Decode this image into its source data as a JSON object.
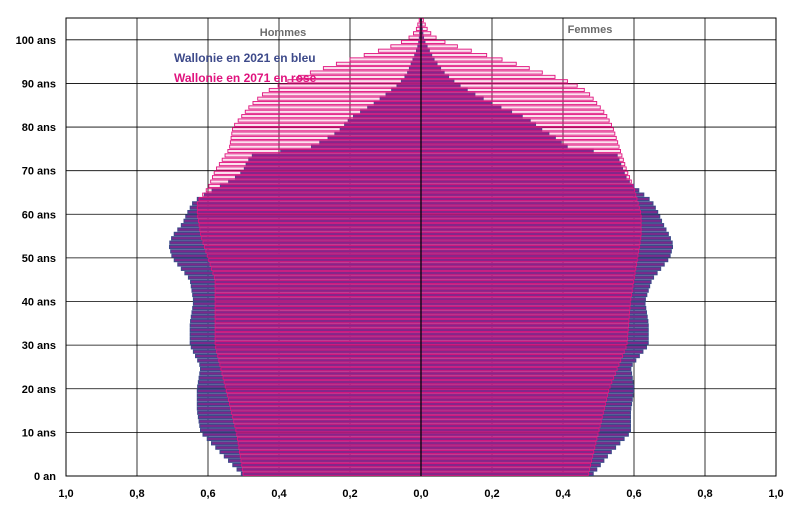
{
  "chart_data": {
    "type": "bar",
    "orientation": "horizontal-pyramid",
    "left_header": "Hommes",
    "right_header": "Femmes",
    "xlim": [
      -1.0,
      1.0
    ],
    "ylim": [
      0,
      105
    ],
    "x_ticks": [
      "1,0",
      "0,8",
      "0,6",
      "0,4",
      "0,2",
      "0,0",
      "0,2",
      "0,4",
      "0,6",
      "0,8",
      "1,0"
    ],
    "y_ticks": [
      {
        "age": 0,
        "label": "0 an"
      },
      {
        "age": 10,
        "label": "10 ans"
      },
      {
        "age": 20,
        "label": "20 ans"
      },
      {
        "age": 30,
        "label": "30 ans"
      },
      {
        "age": 40,
        "label": "40 ans"
      },
      {
        "age": 50,
        "label": "50 ans"
      },
      {
        "age": 60,
        "label": "60 ans"
      },
      {
        "age": 70,
        "label": "70 ans"
      },
      {
        "age": 80,
        "label": "80 ans"
      },
      {
        "age": 90,
        "label": "90 ans"
      },
      {
        "age": 100,
        "label": "100 ans"
      }
    ],
    "legend_position": "top-left",
    "grid": true,
    "colors": {
      "s2021": "#3d4a8a",
      "s2071": "#e0137e",
      "overlap": "#7a2a8c"
    },
    "series": [
      {
        "name": "Wallonie en 2021 en bleu",
        "men_anchors": [
          [
            0,
            0.5
          ],
          [
            5,
            0.56
          ],
          [
            10,
            0.62
          ],
          [
            15,
            0.63
          ],
          [
            20,
            0.63
          ],
          [
            25,
            0.62
          ],
          [
            30,
            0.65
          ],
          [
            35,
            0.65
          ],
          [
            40,
            0.64
          ],
          [
            45,
            0.65
          ],
          [
            50,
            0.7
          ],
          [
            53,
            0.71
          ],
          [
            55,
            0.7
          ],
          [
            58,
            0.67
          ],
          [
            60,
            0.66
          ],
          [
            63,
            0.64
          ],
          [
            65,
            0.6
          ],
          [
            68,
            0.53
          ],
          [
            70,
            0.5
          ],
          [
            72,
            0.49
          ],
          [
            74,
            0.47
          ],
          [
            75,
            0.32
          ],
          [
            78,
            0.25
          ],
          [
            80,
            0.22
          ],
          [
            82,
            0.2
          ],
          [
            85,
            0.14
          ],
          [
            88,
            0.09
          ],
          [
            90,
            0.06
          ],
          [
            92,
            0.04
          ],
          [
            95,
            0.025
          ],
          [
            98,
            0.01
          ],
          [
            100,
            0.005
          ],
          [
            102,
            0.003
          ],
          [
            105,
            0.001
          ]
        ],
        "women_anchors": [
          [
            0,
            0.48
          ],
          [
            5,
            0.53
          ],
          [
            10,
            0.59
          ],
          [
            15,
            0.59
          ],
          [
            20,
            0.6
          ],
          [
            25,
            0.59
          ],
          [
            30,
            0.64
          ],
          [
            35,
            0.64
          ],
          [
            40,
            0.63
          ],
          [
            45,
            0.65
          ],
          [
            50,
            0.7
          ],
          [
            53,
            0.71
          ],
          [
            55,
            0.7
          ],
          [
            58,
            0.68
          ],
          [
            60,
            0.67
          ],
          [
            63,
            0.65
          ],
          [
            65,
            0.62
          ],
          [
            68,
            0.58
          ],
          [
            70,
            0.57
          ],
          [
            72,
            0.56
          ],
          [
            74,
            0.55
          ],
          [
            75,
            0.42
          ],
          [
            78,
            0.37
          ],
          [
            80,
            0.33
          ],
          [
            82,
            0.3
          ],
          [
            85,
            0.21
          ],
          [
            88,
            0.14
          ],
          [
            90,
            0.1
          ],
          [
            92,
            0.07
          ],
          [
            95,
            0.04
          ],
          [
            98,
            0.02
          ],
          [
            100,
            0.008
          ],
          [
            102,
            0.004
          ],
          [
            105,
            0.001
          ]
        ]
      },
      {
        "name": "Wallonie en 2071 en rose",
        "men_anchors": [
          [
            0,
            0.5
          ],
          [
            10,
            0.52
          ],
          [
            20,
            0.55
          ],
          [
            30,
            0.58
          ],
          [
            40,
            0.58
          ],
          [
            45,
            0.58
          ],
          [
            50,
            0.6
          ],
          [
            55,
            0.62
          ],
          [
            60,
            0.63
          ],
          [
            63,
            0.63
          ],
          [
            66,
            0.6
          ],
          [
            70,
            0.58
          ],
          [
            75,
            0.54
          ],
          [
            80,
            0.53
          ],
          [
            83,
            0.5
          ],
          [
            85,
            0.48
          ],
          [
            88,
            0.44
          ],
          [
            90,
            0.39
          ],
          [
            92,
            0.33
          ],
          [
            95,
            0.22
          ],
          [
            98,
            0.1
          ],
          [
            100,
            0.04
          ],
          [
            102,
            0.015
          ],
          [
            105,
            0.003
          ]
        ],
        "women_anchors": [
          [
            0,
            0.47
          ],
          [
            10,
            0.5
          ],
          [
            20,
            0.53
          ],
          [
            30,
            0.58
          ],
          [
            40,
            0.59
          ],
          [
            45,
            0.6
          ],
          [
            50,
            0.61
          ],
          [
            55,
            0.62
          ],
          [
            60,
            0.62
          ],
          [
            63,
            0.61
          ],
          [
            66,
            0.6
          ],
          [
            70,
            0.58
          ],
          [
            75,
            0.56
          ],
          [
            80,
            0.54
          ],
          [
            83,
            0.52
          ],
          [
            85,
            0.5
          ],
          [
            88,
            0.47
          ],
          [
            90,
            0.43
          ],
          [
            92,
            0.36
          ],
          [
            95,
            0.25
          ],
          [
            98,
            0.12
          ],
          [
            100,
            0.05
          ],
          [
            102,
            0.02
          ],
          [
            105,
            0.004
          ]
        ]
      }
    ]
  }
}
